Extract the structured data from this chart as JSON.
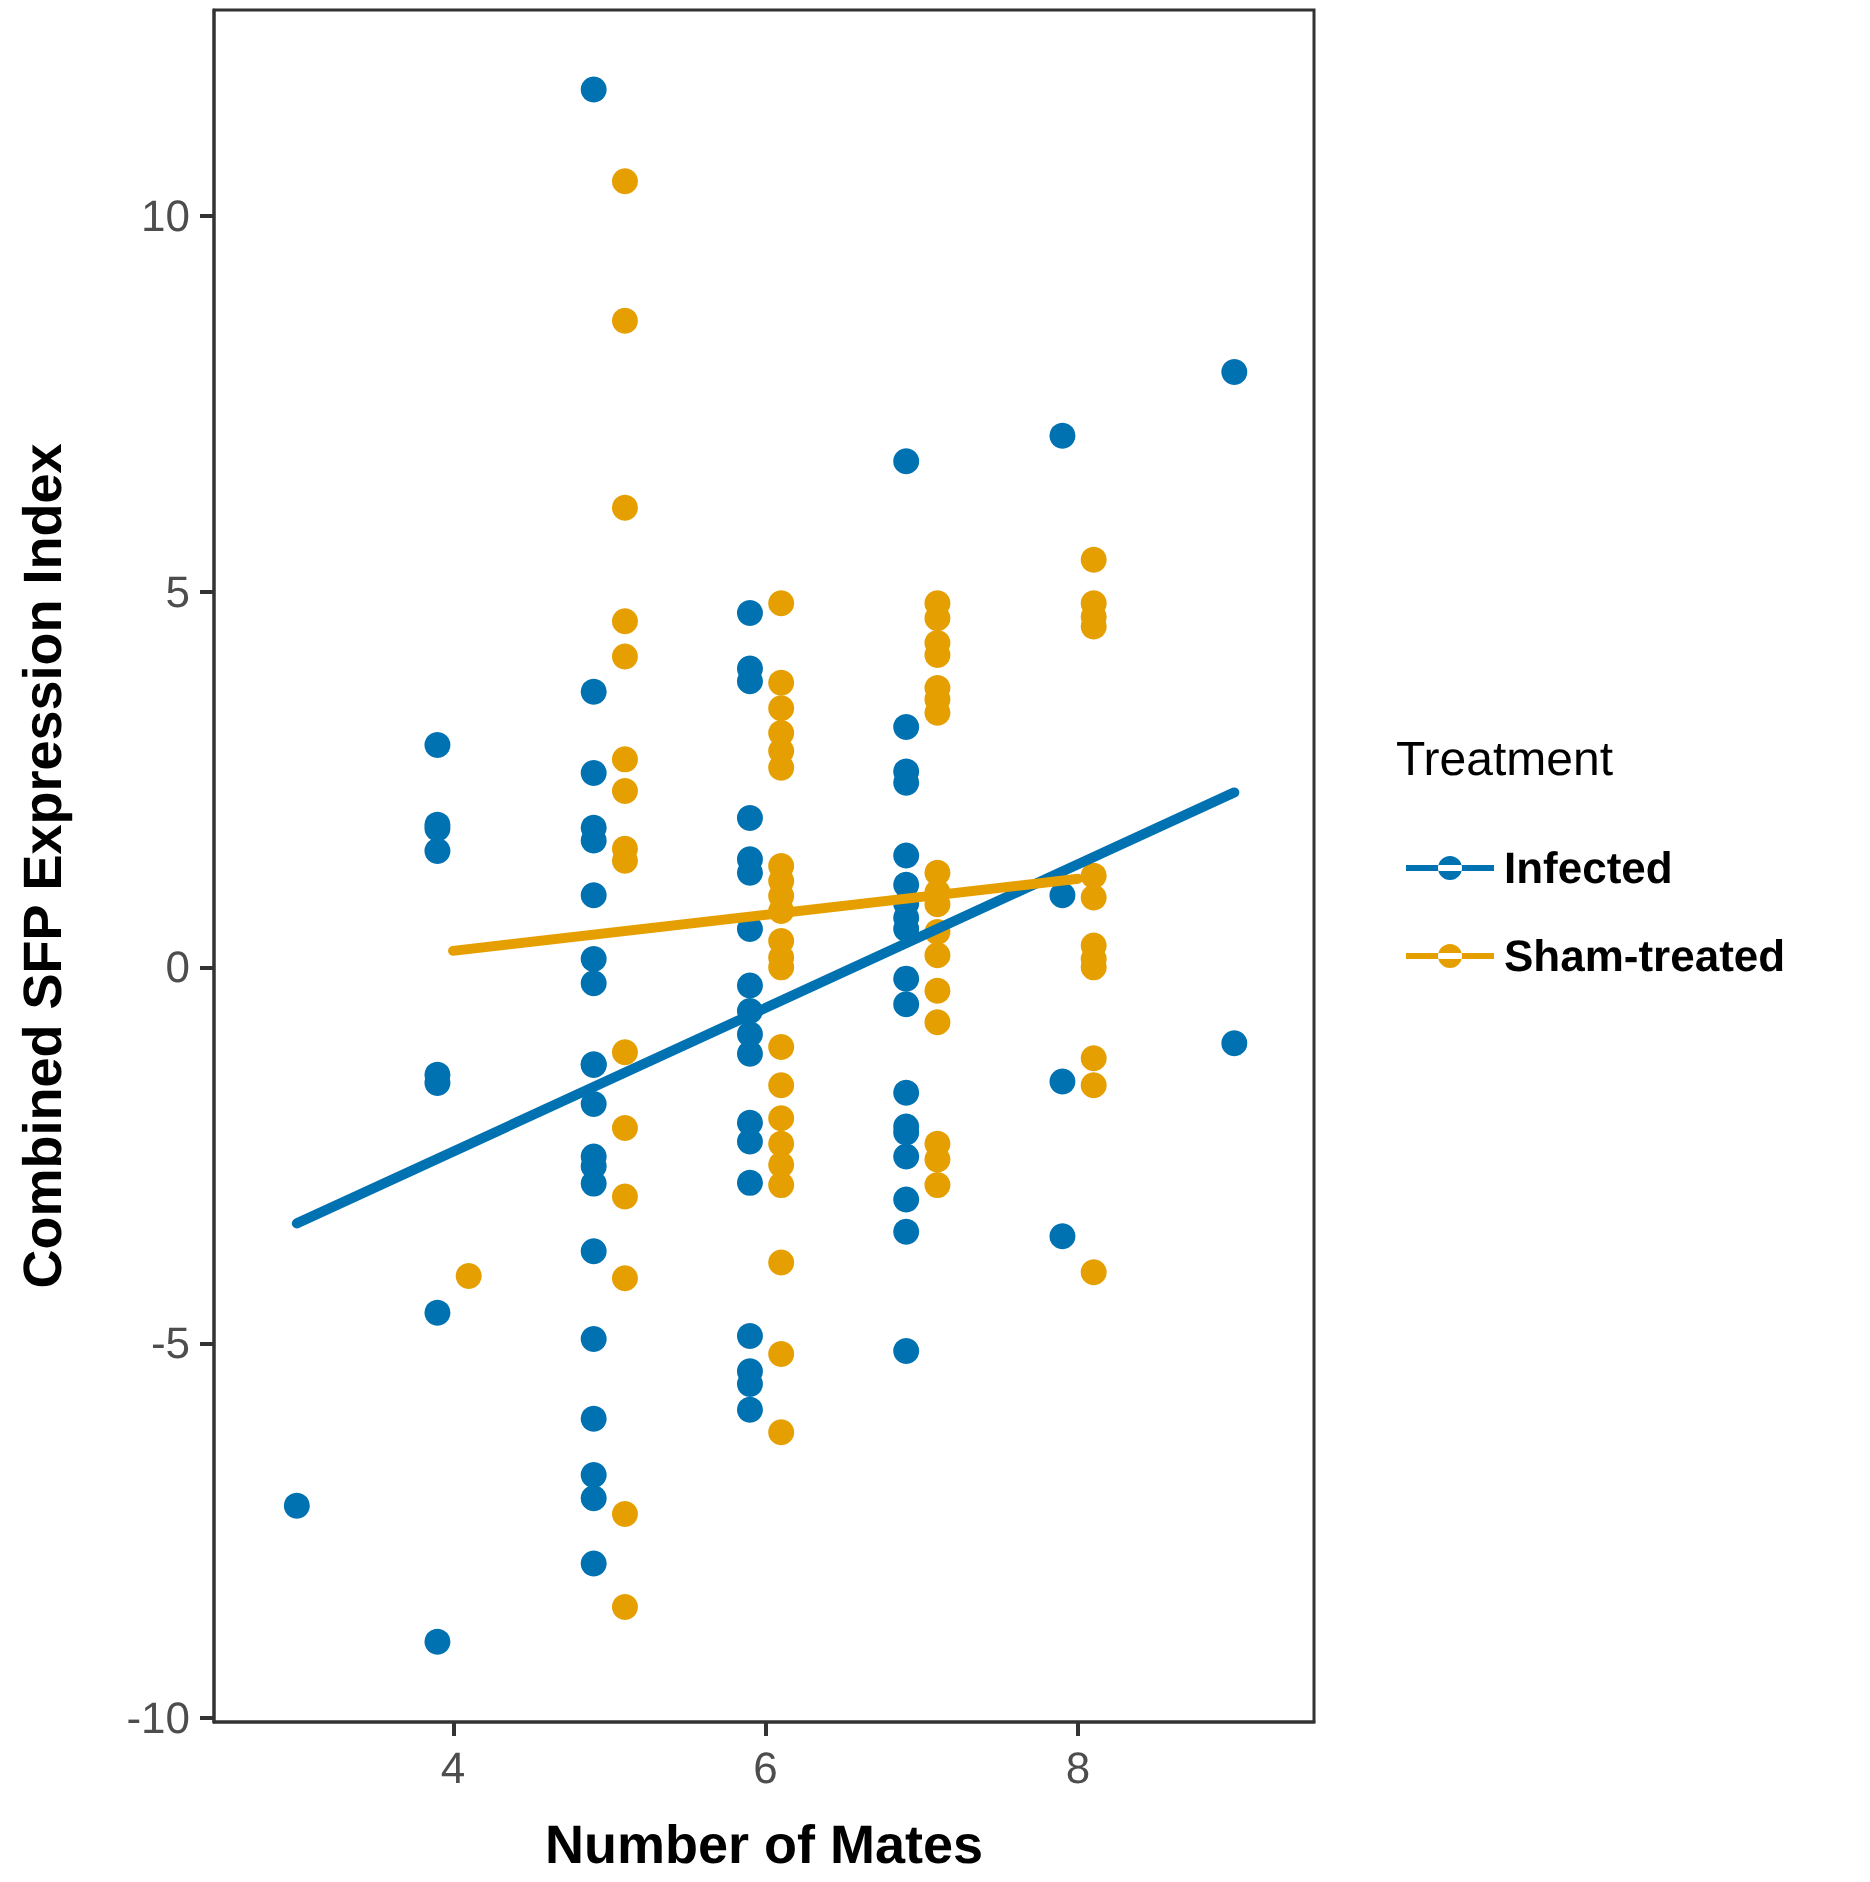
{
  "chart_data": {
    "type": "scatter",
    "xlabel": "Number of Mates",
    "ylabel": "Combined SFP Expression Index",
    "legend_title": "Treatment",
    "legend": "right",
    "grid": false,
    "marker": "circle",
    "xlim": [
      2.47,
      9.51
    ],
    "xticks": [
      4,
      6,
      8
    ],
    "ylim": [
      -10.05,
      12.75
    ],
    "yticks": [
      -10,
      -5,
      0,
      5,
      10
    ],
    "series": [
      {
        "name": "Infected",
        "color": "#0072b2",
        "x": [
          3,
          3.9,
          3.9,
          3.9,
          3.9,
          3.9,
          3.9,
          3.9,
          3.9,
          4.9,
          4.9,
          4.9,
          4.9,
          4.9,
          4.9,
          4.9,
          4.9,
          4.9,
          4.9,
          4.9,
          4.9,
          4.9,
          4.9,
          4.9,
          4.9,
          4.9,
          4.9,
          4.9,
          4.9,
          5.9,
          5.9,
          5.9,
          5.9,
          5.9,
          5.9,
          5.9,
          5.9,
          5.9,
          5.9,
          5.9,
          5.9,
          5.9,
          5.9,
          5.9,
          5.9,
          5.9,
          5.9,
          6.9,
          6.9,
          6.9,
          6.9,
          6.9,
          6.9,
          6.9,
          6.9,
          6.9,
          6.9,
          6.9,
          6.9,
          6.9,
          6.9,
          6.9,
          6.9,
          6.9,
          6.9,
          7.9,
          7.9,
          7.9,
          7.9,
          9,
          9
        ],
        "values": [
          -7.17,
          2.96,
          1.9,
          1.85,
          1.55,
          -1.43,
          -1.54,
          -4.6,
          -8.98,
          11.69,
          3.67,
          2.59,
          1.86,
          1.69,
          0.96,
          0.11,
          -0.21,
          -1.29,
          -1.82,
          -2.52,
          -2.65,
          -2.88,
          -3.78,
          -4.95,
          -6.01,
          -6.76,
          -7.07,
          -7.94,
          -1.3,
          4.72,
          3.98,
          3.81,
          1.99,
          1.44,
          1.26,
          0.51,
          -0.24,
          -0.58,
          -0.89,
          -1.15,
          -2.07,
          -2.32,
          -2.87,
          -4.91,
          -5.38,
          -5.55,
          -5.89,
          6.74,
          3.2,
          2.61,
          2.46,
          1.49,
          1.1,
          0.85,
          0.66,
          0.51,
          -0.15,
          -0.49,
          -1.67,
          -2.12,
          -2.2,
          -2.52,
          -3.09,
          -3.52,
          -5.11,
          7.08,
          0.96,
          -1.52,
          -3.58,
          7.93,
          -1.01
        ]
      },
      {
        "name": "Sham-treated",
        "color": "#e69f00",
        "x": [
          4.1,
          5.1,
          5.1,
          5.1,
          5.1,
          5.1,
          5.1,
          5.1,
          5.1,
          5.1,
          5.1,
          5.1,
          5.1,
          5.1,
          5.1,
          5.1,
          6.1,
          6.1,
          6.1,
          6.1,
          6.1,
          6.1,
          6.1,
          6.1,
          6.1,
          6.1,
          6.1,
          6.1,
          6.1,
          6.1,
          6.1,
          6.1,
          6.1,
          6.1,
          6.1,
          6.1,
          6.1,
          6.1,
          7.1,
          7.1,
          7.1,
          7.1,
          7.1,
          7.1,
          7.1,
          7.1,
          7.1,
          7.1,
          7.1,
          7.1,
          7.1,
          7.1,
          7.1,
          7.1,
          7.1,
          8.1,
          8.1,
          8.1,
          8.1,
          8.1,
          8.1,
          8.1,
          8.1,
          8.1,
          8.1,
          8.1,
          8.1
        ],
        "values": [
          -4.11,
          10.47,
          8.61,
          6.12,
          4.61,
          4.14,
          2.77,
          2.35,
          1.58,
          1.42,
          -1.13,
          -2.14,
          -3.05,
          -4.14,
          -7.28,
          -8.52,
          4.85,
          3.79,
          3.45,
          3.12,
          2.88,
          2.66,
          1.35,
          1.15,
          0.95,
          0.75,
          0.13,
          0.0,
          -1.06,
          -1.57,
          -2.01,
          -2.35,
          -2.63,
          -2.9,
          -3.93,
          -5.15,
          -6.19,
          0.35,
          4.85,
          4.65,
          4.32,
          4.16,
          3.72,
          3.57,
          3.39,
          1.26,
          1.0,
          0.84,
          0.47,
          0.16,
          -0.31,
          -0.73,
          -2.35,
          -2.56,
          -2.9,
          5.43,
          4.85,
          4.67,
          4.54,
          1.22,
          0.93,
          0.29,
          0.11,
          0.0,
          -1.21,
          -1.57,
          -4.06
        ]
      },
      {
        "type": "line",
        "marker": "none",
        "color": "#0072b2",
        "x": [
          3,
          9
        ],
        "values": [
          -3.41,
          2.33
        ]
      },
      {
        "type": "line",
        "marker": "none",
        "color": "#e69f00",
        "x": [
          4,
          8
        ],
        "values": [
          0.22,
          1.18
        ]
      }
    ]
  }
}
